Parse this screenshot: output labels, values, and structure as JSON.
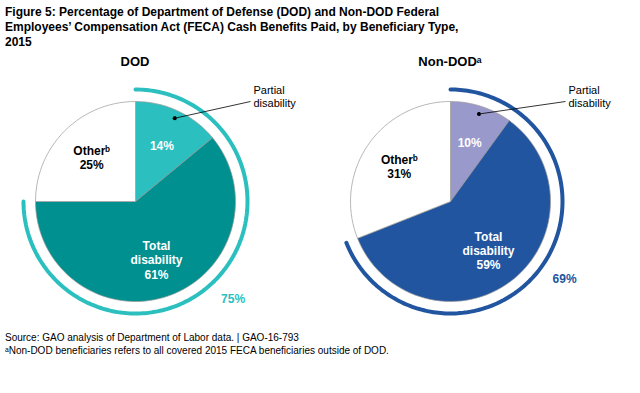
{
  "title": "Figure 5: Percentage of Department of Defense (DOD) and Non-DOD Federal\nEmployees’ Compensation Act (FECA) Cash Benefits Paid, by Beneficiary Type,\n2015",
  "annotations": [
    "Source: GAO analysis of Department of Labor data.  |  GAO-16-793",
    "ᵃNon-DOD beneficiaries refers to all covered 2015 FECA beneficiaries outside of DOD."
  ],
  "chart_data": [
    {
      "type": "pie",
      "title": "DOD",
      "categories": [
        "Partial\ndisability",
        "Total\ndisability",
        "Otherᵇ"
      ],
      "values": [
        14,
        61,
        25
      ],
      "value_labels": [
        "14%",
        "61%",
        "25%"
      ],
      "data_labels": true,
      "colors": [
        "#2BBFBF",
        "#009090",
        "#FFFFFF"
      ],
      "ring": {
        "value": 75,
        "label": "75%",
        "color": "#2BBFBF"
      }
    },
    {
      "type": "pie",
      "title": "Non-DODᵃ",
      "categories": [
        "Partial\ndisability",
        "Total\ndisability",
        "Otherᵇ"
      ],
      "values": [
        10,
        59,
        31
      ],
      "value_labels": [
        "10%",
        "59%",
        "31%"
      ],
      "data_labels": true,
      "colors": [
        "#9999CC",
        "#2255A0",
        "#FFFFFF"
      ],
      "ring": {
        "value": 69,
        "label": "69%",
        "color": "#2255A0"
      }
    }
  ]
}
